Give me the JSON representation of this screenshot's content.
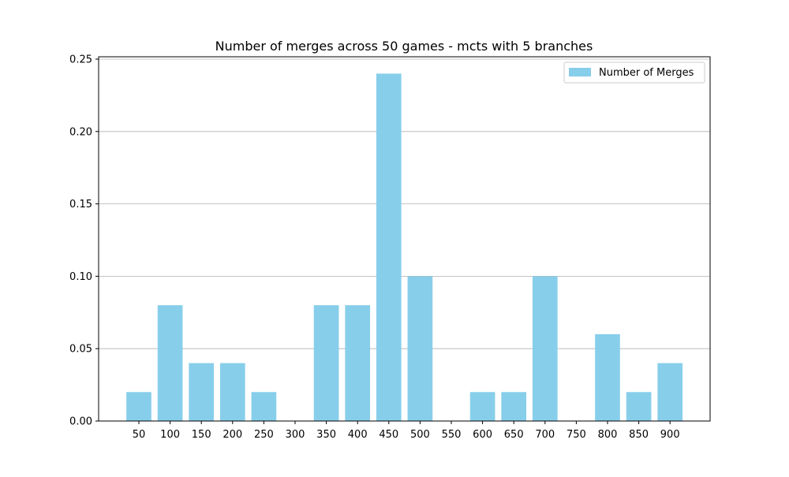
{
  "chart_data": {
    "type": "bar",
    "title": "Number of merges across 50 games - mcts with 5 branches",
    "xlabel": "",
    "ylabel": "",
    "categories": [
      "50",
      "100",
      "150",
      "200",
      "250",
      "300",
      "350",
      "400",
      "450",
      "500",
      "550",
      "600",
      "650",
      "700",
      "750",
      "800",
      "850",
      "900"
    ],
    "series": [
      {
        "name": "Number of Merges",
        "values": [
          0.02,
          0.08,
          0.04,
          0.04,
          0.02,
          0.0,
          0.08,
          0.08,
          0.24,
          0.1,
          0.0,
          0.02,
          0.02,
          0.1,
          0.0,
          0.06,
          0.02,
          0.04
        ],
        "color": "#87ceeb"
      }
    ],
    "ylim": [
      0,
      0.25
    ],
    "yticks": [
      "0.00",
      "0.05",
      "0.10",
      "0.15",
      "0.20",
      "0.25"
    ],
    "grid": "horizontal",
    "legend_position": "top-right"
  }
}
